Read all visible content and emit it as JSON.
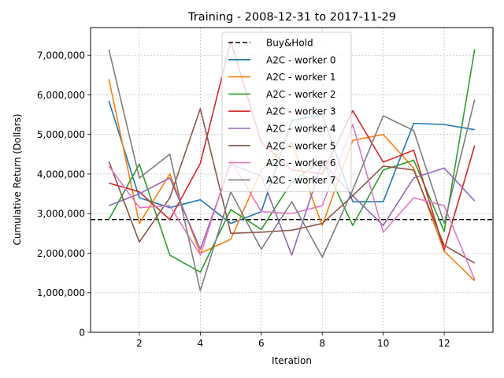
{
  "chart_data": {
    "type": "line",
    "title": "Training - 2008-12-31 to 2017-11-29",
    "xlabel": "Iteration",
    "ylabel": "Cumulative Return (Dollars)",
    "xlim": [
      0.4,
      13.6
    ],
    "ylim": [
      0,
      7700000
    ],
    "x_ticks": [
      2,
      4,
      6,
      8,
      10,
      12
    ],
    "y_ticks": [
      0,
      1000000,
      2000000,
      3000000,
      4000000,
      5000000,
      6000000,
      7000000
    ],
    "y_tick_labels": [
      "0",
      "1,000,000",
      "2,000,000",
      "3,000,000",
      "4,000,000",
      "5,000,000",
      "6,000,000",
      "7,000,000"
    ],
    "grid": true,
    "legend_position": "top-center",
    "x": [
      1,
      2,
      3,
      4,
      5,
      6,
      7,
      8,
      9,
      10,
      11,
      12,
      13
    ],
    "baseline": {
      "name": "Buy&Hold",
      "value": 2850000,
      "color": "#000000"
    },
    "series": [
      {
        "name": "A2C - worker 0",
        "color": "#1f77b4",
        "values": [
          5850000,
          3400000,
          3150000,
          3350000,
          2750000,
          3050000,
          5350000,
          5500000,
          3300000,
          3300000,
          5280000,
          5250000,
          5120000
        ]
      },
      {
        "name": "A2C - worker 1",
        "color": "#ff7f0e",
        "values": [
          6400000,
          2750000,
          4000000,
          2000000,
          2350000,
          4100000,
          4800000,
          2700000,
          4850000,
          5000000,
          4150000,
          2050000,
          1300000
        ]
      },
      {
        "name": "A2C - worker 2",
        "color": "#2ca02c",
        "values": [
          2850000,
          4250000,
          1950000,
          1520000,
          3100000,
          2600000,
          3800000,
          4350000,
          2700000,
          4100000,
          4350000,
          2550000,
          7150000
        ]
      },
      {
        "name": "A2C - worker 3",
        "color": "#d62728",
        "values": [
          3770000,
          3550000,
          2850000,
          4270000,
          7350000,
          4800000,
          4100000,
          4000000,
          5600000,
          4300000,
          4600000,
          2080000,
          4720000
        ]
      },
      {
        "name": "A2C - worker 4",
        "color": "#9467bd",
        "values": [
          3200000,
          3500000,
          3900000,
          2100000,
          4250000,
          3950000,
          1950000,
          4300000,
          3450000,
          2700000,
          3900000,
          4150000,
          3320000
        ]
      },
      {
        "name": "A2C - worker 5",
        "color": "#8c564b",
        "values": [
          4320000,
          2280000,
          3400000,
          5650000,
          2500000,
          2530000,
          2580000,
          2750000,
          3450000,
          4200000,
          4100000,
          2200000,
          1750000
        ]
      },
      {
        "name": "A2C - worker 6",
        "color": "#e377c2",
        "values": [
          4200000,
          3150000,
          3200000,
          1950000,
          4350000,
          3050000,
          3000000,
          3200000,
          5250000,
          2530000,
          3400000,
          3200000,
          1330000
        ]
      },
      {
        "name": "A2C - worker 7",
        "color": "#7f7f7f",
        "values": [
          7150000,
          3900000,
          4500000,
          1050000,
          3550000,
          2100000,
          3300000,
          1900000,
          3600000,
          5470000,
          5100000,
          2750000,
          5880000
        ]
      }
    ]
  }
}
